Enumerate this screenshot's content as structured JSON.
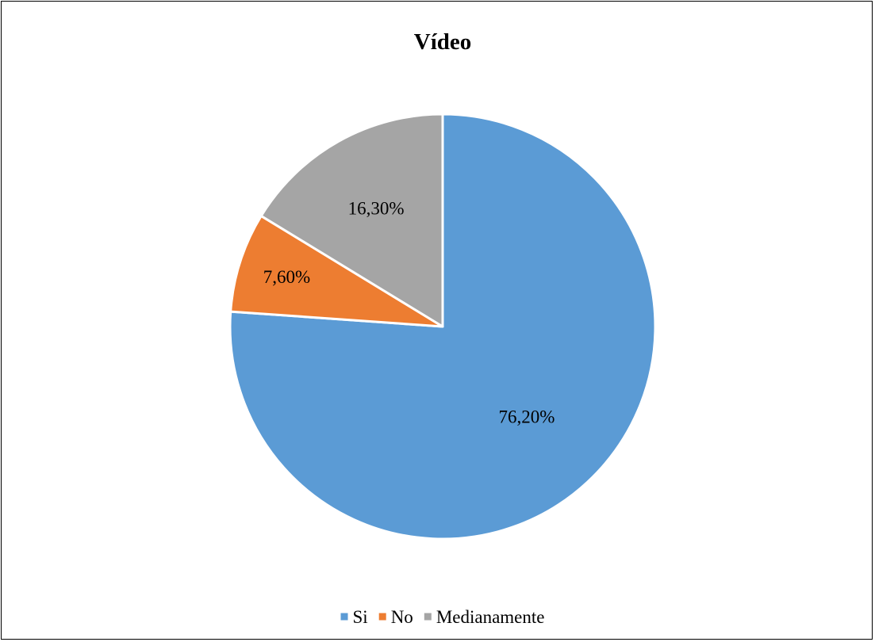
{
  "chart_data": {
    "type": "pie",
    "title": "Vídeo",
    "categories": [
      "Si",
      "No",
      "Medianamente"
    ],
    "values": [
      76.2,
      7.6,
      16.3
    ],
    "data_labels": [
      "76,20%",
      "7,60%",
      "16,30%"
    ],
    "legend_position": "bottom",
    "colors": [
      "#5B9BD5",
      "#ED7D31",
      "#A5A5A5"
    ]
  }
}
